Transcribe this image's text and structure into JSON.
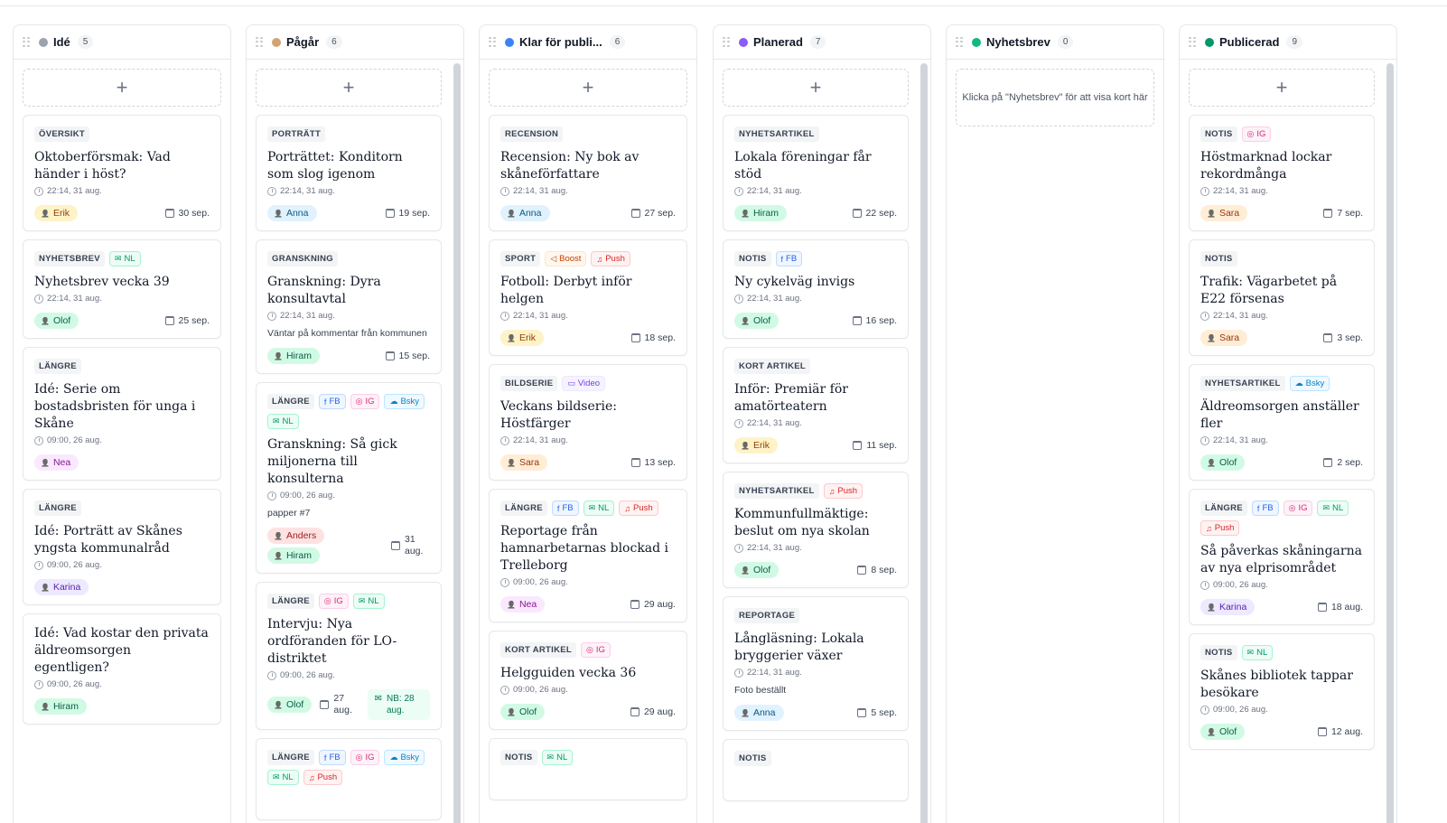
{
  "board": {
    "columns": [
      {
        "title": "Idé",
        "count": "5",
        "dot": "#9ca3af",
        "add": "+",
        "cards": [
          {
            "cat": "ÖVERSIKT",
            "chips": [],
            "title": "Oktoberförsmak: Vad händer i höst?",
            "time": "22:14, 31 aug.",
            "people": [
              {
                "n": "Erik",
                "c": "erik"
              }
            ],
            "date": "30 sep."
          },
          {
            "cat": "NYHETSBREV",
            "chips": [
              {
                "t": "NL",
                "k": "nl",
                "i": "✉"
              }
            ],
            "title": "Nyhetsbrev vecka 39",
            "time": "22:14, 31 aug.",
            "people": [
              {
                "n": "Olof",
                "c": "olof"
              }
            ],
            "date": "25 sep."
          },
          {
            "cat": "LÄNGRE",
            "chips": [],
            "title": "Idé: Serie om bostadsbristen för unga i Skåne",
            "time": "09:00, 26 aug.",
            "people": [
              {
                "n": "Nea",
                "c": "nea"
              }
            ],
            "date": ""
          },
          {
            "cat": "LÄNGRE",
            "chips": [],
            "title": "Idé: Porträtt av Skånes yngsta kommunalråd",
            "time": "09:00, 26 aug.",
            "people": [
              {
                "n": "Karina",
                "c": "karina"
              }
            ],
            "date": ""
          },
          {
            "cat": "",
            "chips": [],
            "title": "Idé: Vad kostar den privata äldreomsorgen egentligen?",
            "time": "09:00, 26 aug.",
            "people": [
              {
                "n": "Hiram",
                "c": "hiram"
              }
            ],
            "date": ""
          }
        ]
      },
      {
        "title": "Pågår",
        "count": "6",
        "dot": "#d4a373",
        "add": "+",
        "cards": [
          {
            "cat": "PORTRÄTT",
            "chips": [],
            "title": "Porträttet: Konditorn som slog igenom",
            "time": "22:14, 31 aug.",
            "people": [
              {
                "n": "Anna",
                "c": "anna"
              }
            ],
            "date": "19 sep."
          },
          {
            "cat": "GRANSKNING",
            "chips": [],
            "title": "Granskning: Dyra konsultavtal",
            "time": "22:14, 31 aug.",
            "note": "Väntar på kommentar från kommunen",
            "people": [
              {
                "n": "Hiram",
                "c": "hiram"
              }
            ],
            "date": "15 sep."
          },
          {
            "cat": "LÄNGRE",
            "chips": [
              {
                "t": "FB",
                "k": "fb",
                "i": "f"
              },
              {
                "t": "IG",
                "k": "ig",
                "i": "◎"
              },
              {
                "t": "Bsky",
                "k": "bsky",
                "i": "☁"
              },
              {
                "t": "NL",
                "k": "nl",
                "i": "✉"
              }
            ],
            "title": "Granskning: Så gick miljonerna till konsulterna",
            "time": "09:00, 26 aug.",
            "note": "papper #7",
            "people": [
              {
                "n": "Anders",
                "c": "anders"
              },
              {
                "n": "Hiram",
                "c": "hiram"
              }
            ],
            "date": "31 aug."
          },
          {
            "cat": "LÄNGRE",
            "chips": [
              {
                "t": "IG",
                "k": "ig",
                "i": "◎"
              },
              {
                "t": "NL",
                "k": "nl",
                "i": "✉"
              }
            ],
            "title": "Intervju: Nya ordföranden för LO-distriktet",
            "time": "09:00, 26 aug.",
            "people": [
              {
                "n": "Olof",
                "c": "olof"
              }
            ],
            "date": "27 aug.",
            "nb": "NB: 28 aug."
          },
          {
            "cat": "LÄNGRE",
            "chips": [
              {
                "t": "FB",
                "k": "fb",
                "i": "f"
              },
              {
                "t": "IG",
                "k": "ig",
                "i": "◎"
              },
              {
                "t": "Bsky",
                "k": "bsky",
                "i": "☁"
              },
              {
                "t": "NL",
                "k": "nl",
                "i": "✉"
              },
              {
                "t": "Push",
                "k": "push",
                "i": "♫"
              }
            ],
            "title": "",
            "time": "",
            "people": [],
            "date": ""
          }
        ]
      },
      {
        "title": "Klar för publi...",
        "count": "6",
        "dot": "#3b82f6",
        "add": "+",
        "cards": [
          {
            "cat": "RECENSION",
            "chips": [],
            "title": "Recension: Ny bok av skåneförfattare",
            "time": "22:14, 31 aug.",
            "people": [
              {
                "n": "Anna",
                "c": "anna"
              }
            ],
            "date": "27 sep."
          },
          {
            "cat": "SPORT",
            "chips": [
              {
                "t": "Boost",
                "k": "boost",
                "i": "◁"
              },
              {
                "t": "Push",
                "k": "push",
                "i": "♫"
              }
            ],
            "title": "Fotboll: Derbyt inför helgen",
            "time": "22:14, 31 aug.",
            "people": [
              {
                "n": "Erik",
                "c": "erik"
              }
            ],
            "date": "18 sep."
          },
          {
            "cat": "BILDSERIE",
            "chips": [
              {
                "t": "Video",
                "k": "video",
                "i": "▭"
              }
            ],
            "title": "Veckans bildserie: Höstfärger",
            "time": "22:14, 31 aug.",
            "people": [
              {
                "n": "Sara",
                "c": "sara"
              }
            ],
            "date": "13 sep."
          },
          {
            "cat": "LÄNGRE",
            "chips": [
              {
                "t": "FB",
                "k": "fb",
                "i": "f"
              },
              {
                "t": "NL",
                "k": "nl",
                "i": "✉"
              },
              {
                "t": "Push",
                "k": "push",
                "i": "♫"
              }
            ],
            "title": "Reportage från hamnarbetarnas blockad i Trelleborg",
            "time": "09:00, 26 aug.",
            "people": [
              {
                "n": "Nea",
                "c": "nea"
              }
            ],
            "date": "29 aug."
          },
          {
            "cat": "KORT ARTIKEL",
            "chips": [
              {
                "t": "IG",
                "k": "ig",
                "i": "◎"
              }
            ],
            "title": "Helgguiden vecka 36",
            "time": "09:00, 26 aug.",
            "people": [
              {
                "n": "Olof",
                "c": "olof"
              }
            ],
            "date": "29 aug."
          },
          {
            "cat": "NOTIS",
            "chips": [
              {
                "t": "NL",
                "k": "nl",
                "i": "✉"
              }
            ],
            "title": "",
            "time": "",
            "people": [],
            "date": ""
          }
        ]
      },
      {
        "title": "Planerad",
        "count": "7",
        "dot": "#8b5cf6",
        "add": "+",
        "cards": [
          {
            "cat": "NYHETSARTIKEL",
            "chips": [],
            "title": "Lokala föreningar får stöd",
            "time": "22:14, 31 aug.",
            "people": [
              {
                "n": "Hiram",
                "c": "hiram"
              }
            ],
            "date": "22 sep."
          },
          {
            "cat": "NOTIS",
            "chips": [
              {
                "t": "FB",
                "k": "fb",
                "i": "f"
              }
            ],
            "title": "Ny cykelväg invigs",
            "time": "22:14, 31 aug.",
            "people": [
              {
                "n": "Olof",
                "c": "olof"
              }
            ],
            "date": "16 sep."
          },
          {
            "cat": "KORT ARTIKEL",
            "chips": [],
            "title": "Inför: Premiär för amatörteatern",
            "time": "22:14, 31 aug.",
            "people": [
              {
                "n": "Erik",
                "c": "erik"
              }
            ],
            "date": "11 sep."
          },
          {
            "cat": "NYHETSARTIKEL",
            "chips": [
              {
                "t": "Push",
                "k": "push",
                "i": "♫"
              }
            ],
            "title": "Kommunfullmäktige: beslut om nya skolan",
            "time": "22:14, 31 aug.",
            "people": [
              {
                "n": "Olof",
                "c": "olof"
              }
            ],
            "date": "8 sep."
          },
          {
            "cat": "REPORTAGE",
            "chips": [],
            "title": "Långläsning: Lokala bryggerier växer",
            "time": "22:14, 31 aug.",
            "note": "Foto beställt",
            "people": [
              {
                "n": "Anna",
                "c": "anna"
              }
            ],
            "date": "5 sep."
          },
          {
            "cat": "NOTIS",
            "chips": [],
            "title": "",
            "time": "",
            "people": [],
            "date": ""
          }
        ]
      },
      {
        "title": "Nyhetsbrev",
        "count": "0",
        "dot": "#10b981",
        "add": "",
        "empty": "Klicka på \"Nyhetsbrev\" för att visa kort här",
        "cards": []
      },
      {
        "title": "Publicerad",
        "count": "9",
        "dot": "#059669",
        "add": "+",
        "cards": [
          {
            "cat": "NOTIS",
            "chips": [
              {
                "t": "IG",
                "k": "ig",
                "i": "◎"
              }
            ],
            "title": "Höstmarknad lockar rekordmånga",
            "time": "22:14, 31 aug.",
            "people": [
              {
                "n": "Sara",
                "c": "sara"
              }
            ],
            "date": "7 sep."
          },
          {
            "cat": "NOTIS",
            "chips": [],
            "title": "Trafik: Vägarbetet på E22 försenas",
            "time": "22:14, 31 aug.",
            "people": [
              {
                "n": "Sara",
                "c": "sara"
              }
            ],
            "date": "3 sep."
          },
          {
            "cat": "NYHETSARTIKEL",
            "chips": [
              {
                "t": "Bsky",
                "k": "bsky",
                "i": "☁"
              }
            ],
            "title": "Äldreomsorgen anställer fler",
            "time": "22:14, 31 aug.",
            "people": [
              {
                "n": "Olof",
                "c": "olof"
              }
            ],
            "date": "2 sep."
          },
          {
            "cat": "LÄNGRE",
            "chips": [
              {
                "t": "FB",
                "k": "fb",
                "i": "f"
              },
              {
                "t": "IG",
                "k": "ig",
                "i": "◎"
              },
              {
                "t": "NL",
                "k": "nl",
                "i": "✉"
              },
              {
                "t": "Push",
                "k": "push",
                "i": "♫"
              }
            ],
            "title": "Så påverkas skåningarna av nya elprisområdet",
            "time": "09:00, 26 aug.",
            "people": [
              {
                "n": "Karina",
                "c": "karina"
              }
            ],
            "date": "18 aug."
          },
          {
            "cat": "NOTIS",
            "chips": [
              {
                "t": "NL",
                "k": "nl",
                "i": "✉"
              }
            ],
            "title": "Skånes bibliotek tappar besökare",
            "time": "09:00, 26 aug.",
            "people": [
              {
                "n": "Olof",
                "c": "olof"
              }
            ],
            "date": "12 aug."
          }
        ]
      }
    ]
  }
}
